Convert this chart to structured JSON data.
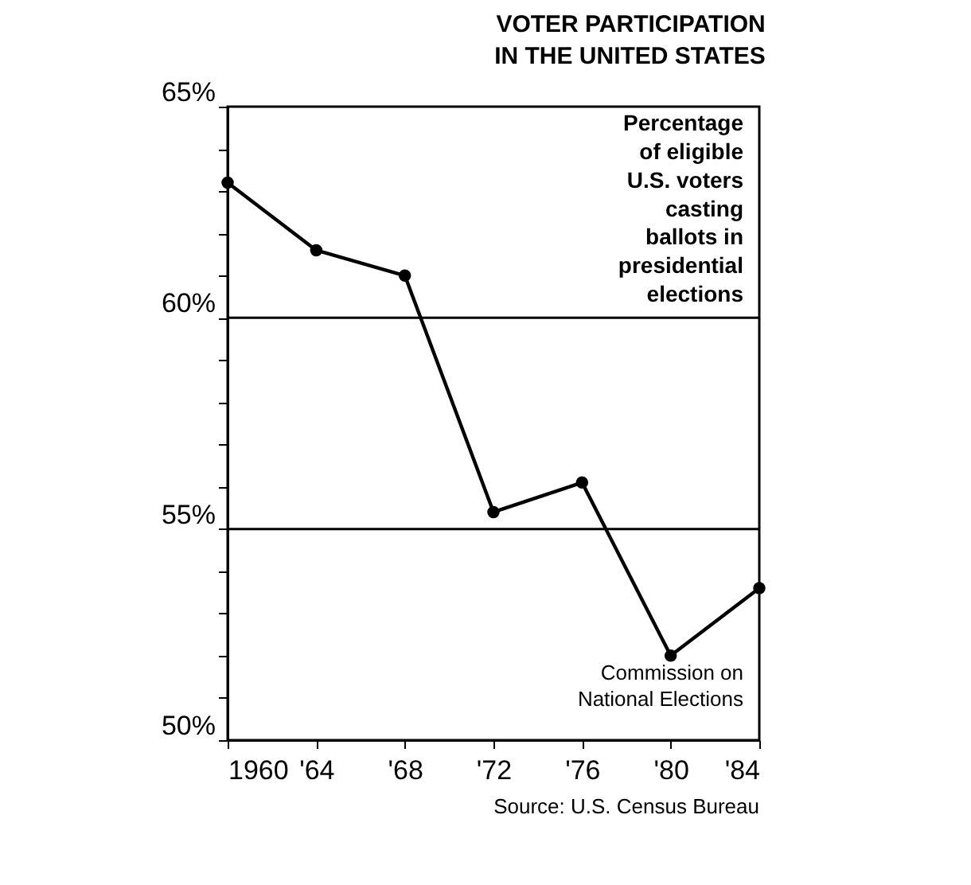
{
  "chart_data": {
    "type": "line",
    "title": "VOTER PARTICIPATION IN THE UNITED STATES",
    "x": [
      1960,
      1964,
      1968,
      1972,
      1976,
      1980,
      1984
    ],
    "series": [
      {
        "color": "#000000",
        "values": [
          63.2,
          61.6,
          61.0,
          55.4,
          56.1,
          52.0,
          53.6
        ]
      }
    ],
    "marker": "circle",
    "line_style": "solid",
    "grid": false,
    "xlim": [
      1960,
      1984
    ],
    "xticks": [
      {
        "value": 1960,
        "label": "1960"
      },
      {
        "value": 1964,
        "label": "'64"
      },
      {
        "value": 1968,
        "label": "'68"
      },
      {
        "value": 1972,
        "label": "'72"
      },
      {
        "value": 1976,
        "label": "'76"
      },
      {
        "value": 1980,
        "label": "'80"
      },
      {
        "value": 1984,
        "label": "'84"
      }
    ],
    "ylim": [
      50,
      65
    ],
    "yticks": [
      {
        "value": 50,
        "label": "50%"
      },
      {
        "value": 51,
        "label": null
      },
      {
        "value": 52,
        "label": null
      },
      {
        "value": 53,
        "label": null
      },
      {
        "value": 54,
        "label": null
      },
      {
        "value": 55,
        "label": "55%"
      },
      {
        "value": 56,
        "label": null
      },
      {
        "value": 57,
        "label": null
      },
      {
        "value": 58,
        "label": null
      },
      {
        "value": 59,
        "label": null
      },
      {
        "value": 60,
        "label": "60%"
      },
      {
        "value": 61,
        "label": null
      },
      {
        "value": 62,
        "label": null
      },
      {
        "value": 63,
        "label": null
      },
      {
        "value": 64,
        "label": null
      },
      {
        "value": 65,
        "label": "65%"
      }
    ],
    "ref_lines": [
      {
        "axis": "y",
        "value": 60,
        "color": "#000000"
      },
      {
        "axis": "y",
        "value": 55,
        "color": "#000000"
      }
    ],
    "annotations": [
      "Percentage of eligible U.S. voters casting ballots in presidential elections",
      "Commission on National Elections",
      "Source: U.S. Census Bureau"
    ]
  }
}
